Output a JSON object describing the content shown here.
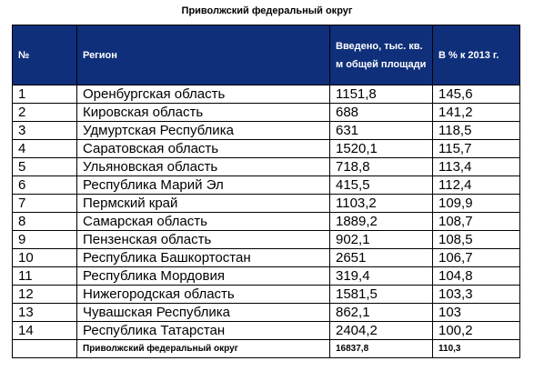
{
  "title": "Приволжский федеральный округ",
  "headers": {
    "num": "№",
    "region": "Регион",
    "area": "Введено, тыс. кв. м общей площади",
    "pct": "В % к 2013 г."
  },
  "rows": [
    {
      "num": "1",
      "region": "Оренбургская область",
      "area": "1151,8",
      "pct": "145,6"
    },
    {
      "num": "2",
      "region": "Кировская область",
      "area": "688",
      "pct": "141,2"
    },
    {
      "num": "3",
      "region": "Удмуртская Республика",
      "area": "631",
      "pct": "118,5"
    },
    {
      "num": "4",
      "region": "Саратовская область",
      "area": "1520,1",
      "pct": "115,7"
    },
    {
      "num": "5",
      "region": "Ульяновская область",
      "area": "718,8",
      "pct": "113,4"
    },
    {
      "num": "6",
      "region": "Республика Марий Эл",
      "area": "415,5",
      "pct": "112,4"
    },
    {
      "num": "7",
      "region": "Пермский край",
      "area": "1103,2",
      "pct": "109,9"
    },
    {
      "num": "8",
      "region": "Самарская область",
      "area": "1889,2",
      "pct": "108,7"
    },
    {
      "num": "9",
      "region": "Пензенская область",
      "area": "902,1",
      "pct": "108,5"
    },
    {
      "num": "10",
      "region": "Республика Башкортостан",
      "area": "2651",
      "pct": "106,7"
    },
    {
      "num": "11",
      "region": "Республика Мордовия",
      "area": "319,4",
      "pct": "104,8"
    },
    {
      "num": "12",
      "region": "Нижегородская область",
      "area": "1581,5",
      "pct": "103,3"
    },
    {
      "num": "13",
      "region": "Чувашская Республика",
      "area": "862,1",
      "pct": "103"
    },
    {
      "num": "14",
      "region": "Республика Татарстан",
      "area": "2404,2",
      "pct": "100,2"
    }
  ],
  "total": {
    "num": "",
    "region": "Приволжский федеральный округ",
    "area": "16837,8",
    "pct": "110,3"
  },
  "colors": {
    "header_bg": "#0f2f7a",
    "header_text": "#ffffff",
    "border": "#000000"
  }
}
